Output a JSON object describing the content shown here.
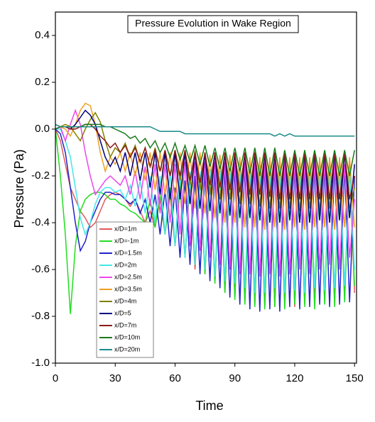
{
  "chart_data": {
    "type": "line",
    "title": "Pressure Evolution in Wake Region",
    "xlabel": "Time",
    "ylabel": "Pressure (Pa)",
    "xlim": [
      0,
      151
    ],
    "ylim": [
      -1.0,
      0.5
    ],
    "xticks": [
      0,
      30,
      60,
      90,
      120,
      150
    ],
    "yticks": [
      {
        "value": -1.0,
        "label": "-1.0"
      },
      -0.8,
      -0.6,
      -0.4,
      -0.2,
      {
        "value": 0,
        "label": "0.0"
      },
      0.2,
      0.4
    ],
    "legend": "lower-left",
    "x": [
      0,
      2.5,
      5,
      7.5,
      10,
      12.5,
      15,
      17.5,
      20,
      22.5,
      25,
      27.5,
      30,
      32.5,
      35,
      37.5,
      40,
      42.5,
      45,
      47.5,
      50,
      52.5,
      55,
      57.5,
      60,
      62.5,
      65,
      67.5,
      70,
      72.5,
      75,
      77.5,
      80,
      82.5,
      85,
      87.5,
      90,
      92.5,
      95,
      97.5,
      100,
      102.5,
      105,
      107.5,
      110,
      112.5,
      115,
      117.5,
      120,
      122.5,
      125,
      127.5,
      130,
      132.5,
      135,
      137.5,
      140,
      142.5,
      145,
      147.5,
      150
    ],
    "series": [
      {
        "name": "x/D=1m",
        "color": "#e05a5a",
        "values": [
          0,
          -0.05,
          -0.15,
          -0.25,
          -0.3,
          -0.35,
          -0.38,
          -0.42,
          -0.4,
          -0.35,
          -0.3,
          -0.28,
          -0.27,
          -0.28,
          -0.3,
          -0.33,
          -0.3,
          -0.35,
          -0.4,
          -0.35,
          -0.42,
          -0.3,
          -0.45,
          -0.28,
          -0.5,
          -0.25,
          -0.55,
          -0.22,
          -0.6,
          -0.2,
          -0.62,
          -0.2,
          -0.65,
          -0.18,
          -0.7,
          -0.18,
          -0.72,
          -0.17,
          -0.74,
          -0.16,
          -0.75,
          -0.16,
          -0.76,
          -0.15,
          -0.76,
          -0.15,
          -0.75,
          -0.15,
          -0.76,
          -0.15,
          -0.74,
          -0.15,
          -0.75,
          -0.15,
          -0.74,
          -0.15,
          -0.73,
          -0.15,
          -0.72,
          -0.16,
          -0.7
        ]
      },
      {
        "name": "x/D=-1m",
        "color": "#22dd22",
        "values": [
          0,
          -0.2,
          -0.45,
          -0.79,
          -0.5,
          -0.35,
          -0.3,
          -0.28,
          -0.27,
          -0.27,
          -0.28,
          -0.3,
          -0.3,
          -0.32,
          -0.33,
          -0.35,
          -0.36,
          -0.38,
          -0.4,
          -0.3,
          -0.42,
          -0.28,
          -0.45,
          -0.25,
          -0.5,
          -0.22,
          -0.55,
          -0.2,
          -0.58,
          -0.2,
          -0.62,
          -0.18,
          -0.66,
          -0.18,
          -0.7,
          -0.17,
          -0.73,
          -0.16,
          -0.75,
          -0.16,
          -0.76,
          -0.15,
          -0.77,
          -0.15,
          -0.76,
          -0.15,
          -0.77,
          -0.15,
          -0.75,
          -0.15,
          -0.76,
          -0.15,
          -0.77,
          -0.15,
          -0.75,
          -0.15,
          -0.76,
          -0.15,
          -0.74,
          -0.15,
          -0.67
        ]
      },
      {
        "name": "x/D=1.5m",
        "color": "#2222cc",
        "values": [
          0,
          -0.02,
          -0.1,
          -0.25,
          -0.4,
          -0.52,
          -0.48,
          -0.4,
          -0.35,
          -0.3,
          -0.27,
          -0.27,
          -0.28,
          -0.28,
          -0.3,
          -0.32,
          -0.3,
          -0.36,
          -0.3,
          -0.4,
          -0.28,
          -0.45,
          -0.26,
          -0.5,
          -0.25,
          -0.55,
          -0.22,
          -0.58,
          -0.2,
          -0.62,
          -0.18,
          -0.65,
          -0.18,
          -0.68,
          -0.17,
          -0.72,
          -0.16,
          -0.75,
          -0.15,
          -0.77,
          -0.15,
          -0.78,
          -0.15,
          -0.77,
          -0.15,
          -0.78,
          -0.15,
          -0.76,
          -0.15,
          -0.77,
          -0.15,
          -0.76,
          -0.15,
          -0.75,
          -0.15,
          -0.76,
          -0.15,
          -0.75,
          -0.16,
          -0.74,
          -0.2
        ]
      },
      {
        "name": "x/D=2m",
        "color": "#44e8e8",
        "values": [
          0,
          0,
          -0.05,
          -0.12,
          -0.25,
          -0.38,
          -0.45,
          -0.4,
          -0.32,
          -0.27,
          -0.25,
          -0.25,
          -0.27,
          -0.26,
          -0.3,
          -0.24,
          -0.33,
          -0.22,
          -0.36,
          -0.2,
          -0.4,
          -0.2,
          -0.45,
          -0.18,
          -0.5,
          -0.18,
          -0.55,
          -0.18,
          -0.58,
          -0.18,
          -0.6,
          -0.17,
          -0.63,
          -0.17,
          -0.65,
          -0.17,
          -0.66,
          -0.16,
          -0.68,
          -0.16,
          -0.7,
          -0.16,
          -0.7,
          -0.16,
          -0.68,
          -0.16,
          -0.7,
          -0.16,
          -0.69,
          -0.16,
          -0.7,
          -0.16,
          -0.68,
          -0.16,
          -0.69,
          -0.16,
          -0.68,
          -0.16,
          -0.67,
          -0.17,
          -0.6
        ]
      },
      {
        "name": "x/D=2.5m",
        "color": "#ee44ee",
        "values": [
          0,
          0.01,
          -0.05,
          0.02,
          0.08,
          0.02,
          -0.1,
          -0.2,
          -0.28,
          -0.25,
          -0.22,
          -0.2,
          -0.22,
          -0.24,
          -0.2,
          -0.28,
          -0.18,
          -0.3,
          -0.16,
          -0.33,
          -0.15,
          -0.36,
          -0.15,
          -0.4,
          -0.15,
          -0.45,
          -0.14,
          -0.5,
          -0.14,
          -0.52,
          -0.14,
          -0.55,
          -0.14,
          -0.58,
          -0.14,
          -0.6,
          -0.14,
          -0.62,
          -0.14,
          -0.62,
          -0.14,
          -0.63,
          -0.14,
          -0.62,
          -0.14,
          -0.63,
          -0.14,
          -0.62,
          -0.14,
          -0.6,
          -0.14,
          -0.62,
          -0.14,
          -0.6,
          -0.14,
          -0.58,
          -0.14,
          -0.6,
          -0.15,
          -0.55,
          -0.3
        ]
      },
      {
        "name": "x/D=3.5m",
        "color": "#f0a020",
        "values": [
          0,
          0.01,
          0,
          -0.03,
          0.02,
          0.08,
          0.11,
          0.1,
          0.02,
          -0.1,
          -0.18,
          -0.12,
          -0.15,
          -0.1,
          -0.18,
          -0.1,
          -0.2,
          -0.1,
          -0.22,
          -0.1,
          -0.26,
          -0.1,
          -0.28,
          -0.1,
          -0.3,
          -0.1,
          -0.32,
          -0.1,
          -0.34,
          -0.1,
          -0.36,
          -0.11,
          -0.38,
          -0.11,
          -0.4,
          -0.11,
          -0.4,
          -0.12,
          -0.42,
          -0.12,
          -0.42,
          -0.12,
          -0.43,
          -0.12,
          -0.42,
          -0.12,
          -0.43,
          -0.12,
          -0.42,
          -0.12,
          -0.43,
          -0.12,
          -0.42,
          -0.12,
          -0.42,
          -0.12,
          -0.43,
          -0.12,
          -0.42,
          -0.12,
          -0.42
        ]
      },
      {
        "name": "x/D=4m",
        "color": "#808000",
        "values": [
          0,
          0.01,
          0.02,
          0.01,
          -0.02,
          -0.05,
          0,
          0.04,
          0.07,
          0.03,
          -0.05,
          -0.12,
          -0.08,
          -0.1,
          -0.06,
          -0.12,
          -0.07,
          -0.14,
          -0.08,
          -0.16,
          -0.08,
          -0.18,
          -0.09,
          -0.2,
          -0.09,
          -0.22,
          -0.09,
          -0.24,
          -0.09,
          -0.26,
          -0.1,
          -0.28,
          -0.1,
          -0.3,
          -0.1,
          -0.3,
          -0.1,
          -0.32,
          -0.1,
          -0.32,
          -0.1,
          -0.33,
          -0.1,
          -0.34,
          -0.1,
          -0.34,
          -0.1,
          -0.34,
          -0.1,
          -0.35,
          -0.1,
          -0.34,
          -0.1,
          -0.35,
          -0.1,
          -0.34,
          -0.1,
          -0.35,
          -0.1,
          -0.34,
          -0.25
        ]
      },
      {
        "name": "x/D=5",
        "color": "#000080",
        "values": [
          0,
          0.01,
          0.01,
          0,
          0.02,
          0.05,
          0.08,
          0.06,
          0.02,
          -0.05,
          -0.12,
          -0.16,
          -0.12,
          -0.18,
          -0.1,
          -0.2,
          -0.1,
          -0.22,
          -0.1,
          -0.25,
          -0.1,
          -0.28,
          -0.1,
          -0.3,
          -0.1,
          -0.3,
          -0.1,
          -0.32,
          -0.1,
          -0.34,
          -0.1,
          -0.35,
          -0.1,
          -0.36,
          -0.1,
          -0.37,
          -0.1,
          -0.38,
          -0.1,
          -0.38,
          -0.1,
          -0.39,
          -0.1,
          -0.4,
          -0.1,
          -0.4,
          -0.1,
          -0.39,
          -0.1,
          -0.4,
          -0.1,
          -0.4,
          -0.1,
          -0.39,
          -0.1,
          -0.4,
          -0.1,
          -0.39,
          -0.1,
          -0.38,
          -0.15
        ]
      },
      {
        "name": "x/D=7m",
        "color": "#8b1a1a",
        "values": [
          0,
          0.01,
          0.01,
          0,
          0,
          0.01,
          0.02,
          0.02,
          0,
          -0.03,
          -0.05,
          -0.08,
          -0.06,
          -0.1,
          -0.07,
          -0.12,
          -0.08,
          -0.14,
          -0.08,
          -0.16,
          -0.09,
          -0.18,
          -0.09,
          -0.2,
          -0.09,
          -0.2,
          -0.09,
          -0.22,
          -0.1,
          -0.23,
          -0.1,
          -0.24,
          -0.1,
          -0.25,
          -0.1,
          -0.26,
          -0.1,
          -0.27,
          -0.1,
          -0.28,
          -0.1,
          -0.28,
          -0.1,
          -0.29,
          -0.1,
          -0.3,
          -0.1,
          -0.3,
          -0.1,
          -0.3,
          -0.1,
          -0.3,
          -0.1,
          -0.3,
          -0.1,
          -0.3,
          -0.1,
          -0.3,
          -0.1,
          -0.3,
          -0.2
        ]
      },
      {
        "name": "x/D=10m",
        "color": "#1a7a1a",
        "values": [
          0,
          0.01,
          0.01,
          0.01,
          0.01,
          0.01,
          0.02,
          0.02,
          0.02,
          0.02,
          0.01,
          0.01,
          0,
          -0.01,
          -0.02,
          -0.04,
          -0.03,
          -0.06,
          -0.04,
          -0.08,
          -0.05,
          -0.1,
          -0.06,
          -0.12,
          -0.06,
          -0.13,
          -0.07,
          -0.14,
          -0.07,
          -0.15,
          -0.07,
          -0.16,
          -0.08,
          -0.17,
          -0.08,
          -0.18,
          -0.08,
          -0.18,
          -0.08,
          -0.19,
          -0.08,
          -0.2,
          -0.08,
          -0.2,
          -0.08,
          -0.2,
          -0.09,
          -0.2,
          -0.09,
          -0.2,
          -0.09,
          -0.2,
          -0.09,
          -0.2,
          -0.09,
          -0.2,
          -0.09,
          -0.2,
          -0.09,
          -0.2,
          -0.09
        ]
      },
      {
        "name": "x/D=20m",
        "color": "#1a8a8a",
        "values": [
          0.02,
          0.01,
          0.01,
          0.01,
          0.01,
          0.01,
          0.01,
          0.01,
          0.01,
          0.01,
          0.01,
          0.01,
          0.01,
          0.01,
          0.01,
          0.01,
          0.01,
          0.01,
          0.01,
          0.01,
          0,
          -0.01,
          -0.01,
          -0.01,
          -0.01,
          -0.01,
          -0.02,
          -0.02,
          -0.02,
          -0.02,
          -0.02,
          -0.02,
          -0.02,
          -0.02,
          -0.02,
          -0.02,
          -0.02,
          -0.02,
          -0.02,
          -0.02,
          -0.02,
          -0.02,
          -0.02,
          -0.02,
          -0.03,
          -0.02,
          -0.03,
          -0.02,
          -0.03,
          -0.03,
          -0.03,
          -0.03,
          -0.03,
          -0.03,
          -0.03,
          -0.03,
          -0.03,
          -0.03,
          -0.03,
          -0.03,
          -0.03
        ]
      }
    ]
  }
}
